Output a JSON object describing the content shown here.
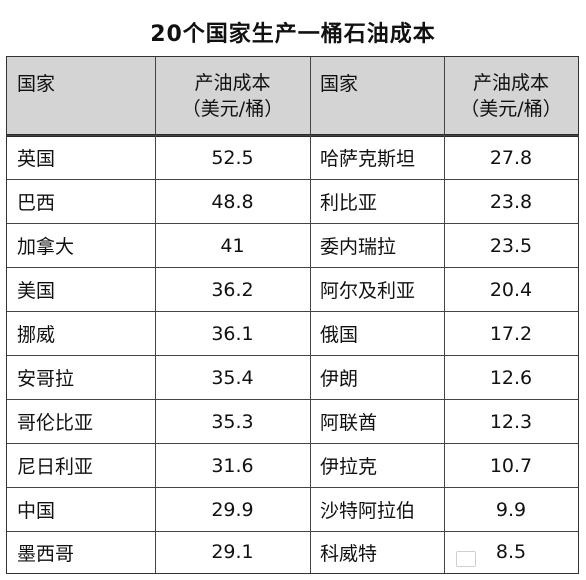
{
  "title": "20个国家生产一桶石油成本",
  "headers": {
    "country": "国家",
    "cost_line1": "产油成本",
    "cost_line2": "（美元/桶）"
  },
  "rows": [
    {
      "country_left": "英国",
      "cost_left": "52.5",
      "country_right": "哈萨克斯坦",
      "cost_right": "27.8"
    },
    {
      "country_left": "巴西",
      "cost_left": "48.8",
      "country_right": "利比亚",
      "cost_right": "23.8"
    },
    {
      "country_left": "加拿大",
      "cost_left": "41",
      "country_right": "委内瑞拉",
      "cost_right": "23.5"
    },
    {
      "country_left": "美国",
      "cost_left": "36.2",
      "country_right": "阿尔及利亚",
      "cost_right": "20.4"
    },
    {
      "country_left": "挪威",
      "cost_left": "36.1",
      "country_right": "俄国",
      "cost_right": "17.2"
    },
    {
      "country_left": "安哥拉",
      "cost_left": "35.4",
      "country_right": "伊朗",
      "cost_right": "12.6"
    },
    {
      "country_left": "哥伦比亚",
      "cost_left": "35.3",
      "country_right": "阿联酋",
      "cost_right": "12.3"
    },
    {
      "country_left": "尼日利亚",
      "cost_left": "31.6",
      "country_right": "伊拉克",
      "cost_right": "10.7"
    },
    {
      "country_left": "中国",
      "cost_left": "29.9",
      "country_right": "沙特阿拉伯",
      "cost_right": "9.9"
    },
    {
      "country_left": "墨西哥",
      "cost_left": "29.1",
      "country_right": "科威特",
      "cost_right": "8.5"
    }
  ]
}
